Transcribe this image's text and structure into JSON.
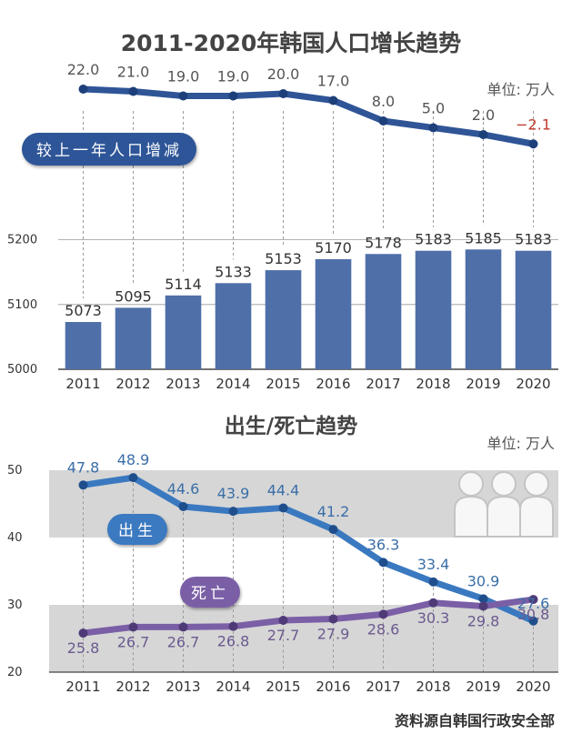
{
  "title": "2011-2020年韩国人口增长趋势",
  "unit": "单位: 万人",
  "source": "资料源自韩国行政安全部",
  "colors": {
    "bar": "#4f6fa9",
    "change": "#2f5597",
    "birth": "#3a79c0",
    "death": "#7a5fa6",
    "band": "#d6d6d6",
    "axis": "#444444"
  },
  "icons": [
    "people-silhouette-icon"
  ],
  "chart_data": [
    {
      "type": "bar",
      "categories": [
        "2011",
        "2012",
        "2013",
        "2014",
        "2015",
        "2016",
        "2017",
        "2018",
        "2019",
        "2020"
      ],
      "values": [
        5073,
        5095,
        5114,
        5133,
        5153,
        5170,
        5178,
        5183,
        5185,
        5183
      ],
      "y_ticks": [
        5000,
        5100,
        5200
      ],
      "ylim": [
        5000,
        5250
      ],
      "grid": true
    },
    {
      "type": "line",
      "categories": [
        "2011",
        "2012",
        "2013",
        "2014",
        "2015",
        "2016",
        "2017",
        "2018",
        "2019",
        "2020"
      ],
      "series": [
        {
          "name": "较上一年人口增减",
          "values": [
            22.0,
            21.0,
            19.0,
            19.0,
            20.0,
            17.0,
            8.0,
            5.0,
            2.0,
            -2.1
          ],
          "labels": [
            "22.0",
            "21.0",
            "19.0",
            "19.0",
            "20.0",
            "17.0",
            "8.0",
            "5.0",
            "2.0",
            "−2.1"
          ]
        }
      ],
      "ylim": [
        -10,
        30
      ]
    },
    {
      "type": "line",
      "title": "出生/死亡趋势",
      "unit": "单位: 万人",
      "categories": [
        "2011",
        "2012",
        "2013",
        "2014",
        "2015",
        "2016",
        "2017",
        "2018",
        "2019",
        "2020"
      ],
      "y_ticks": [
        20,
        30,
        40,
        50
      ],
      "ylim": [
        20,
        50
      ],
      "bands": [
        [
          30,
          20
        ],
        [
          50,
          40
        ]
      ],
      "series": [
        {
          "name": "出生",
          "values": [
            47.8,
            48.9,
            44.6,
            43.9,
            44.4,
            41.2,
            36.3,
            33.4,
            30.9,
            27.6
          ]
        },
        {
          "name": "死亡",
          "values": [
            25.8,
            26.7,
            26.7,
            26.8,
            27.7,
            27.9,
            28.6,
            30.3,
            29.8,
            30.8
          ]
        }
      ]
    }
  ]
}
